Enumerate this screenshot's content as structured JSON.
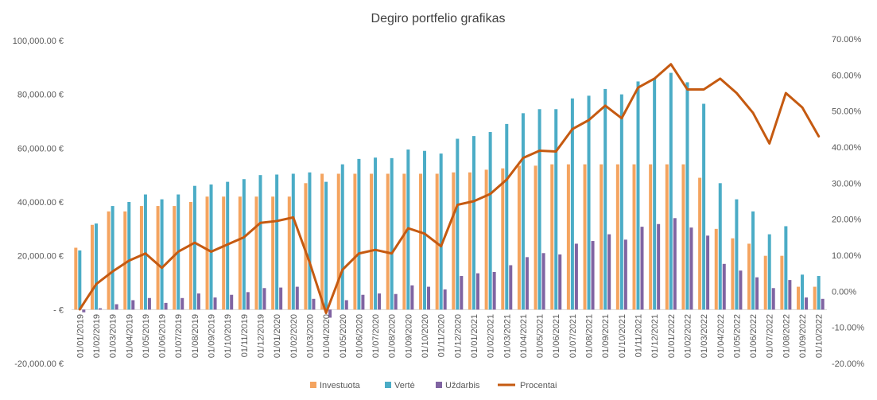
{
  "chart_data": {
    "type": "bar",
    "title": "Degiro portfelio grafikas",
    "xlabel": "",
    "ylabel": "",
    "categories": [
      "01/01/2019",
      "01/02/2019",
      "01/03/2019",
      "01/04/2019",
      "01/05/2019",
      "01/06/2019",
      "01/07/2019",
      "01/08/2019",
      "01/09/2019",
      "01/10/2019",
      "01/11/2019",
      "01/12/2019",
      "01/01/2020",
      "01/02/2020",
      "01/03/2020",
      "01/04/2020",
      "01/05/2020",
      "01/06/2020",
      "01/07/2020",
      "01/08/2020",
      "01/09/2020",
      "01/10/2020",
      "01/11/2020",
      "01/12/2020",
      "01/01/2021",
      "01/02/2021",
      "01/03/2021",
      "01/04/2021",
      "01/05/2021",
      "01/06/2021",
      "01/07/2021",
      "01/08/2021",
      "01/09/2021",
      "01/10/2021",
      "01/11/2021",
      "01/12/2021",
      "01/01/2022",
      "01/02/2022",
      "01/03/2022",
      "01/04/2022",
      "01/05/2022",
      "01/06/2022",
      "01/07/2022",
      "01/08/2022",
      "01/09/2022",
      "01/10/2022"
    ],
    "series": [
      {
        "name": "Investuota",
        "axis": "left",
        "kind": "bar",
        "color": "#f4a460",
        "values": [
          23000,
          31500,
          36500,
          36500,
          38500,
          38500,
          38500,
          40000,
          42000,
          42000,
          42000,
          42000,
          42000,
          42000,
          47000,
          50500,
          50500,
          50500,
          50500,
          50500,
          50500,
          50500,
          50500,
          51000,
          51000,
          52000,
          52500,
          53500,
          53500,
          54000,
          54000,
          54000,
          54000,
          54000,
          54000,
          54000,
          54000,
          54000,
          49000,
          30000,
          26500,
          24500,
          20000,
          20000,
          8500,
          8500
        ]
      },
      {
        "name": "Vertė",
        "axis": "left",
        "kind": "bar",
        "color": "#4bacc6",
        "values": [
          22000,
          32000,
          38500,
          40000,
          42800,
          41000,
          42800,
          46000,
          46500,
          47500,
          48500,
          50000,
          50200,
          50500,
          51000,
          47500,
          54000,
          56000,
          56500,
          56300,
          59500,
          59000,
          58000,
          63500,
          64500,
          66000,
          69000,
          73000,
          74500,
          74500,
          78500,
          79500,
          82000,
          80000,
          84800,
          85800,
          88000,
          84500,
          76500,
          47000,
          41000,
          36500,
          28000,
          31000,
          13000,
          12500
        ]
      },
      {
        "name": "Uždarbis",
        "axis": "left",
        "kind": "bar",
        "color": "#8064a2",
        "values": [
          -1000,
          500,
          2000,
          3500,
          4300,
          2500,
          4300,
          6000,
          4500,
          5500,
          6500,
          8000,
          8200,
          8500,
          4000,
          -3000,
          3500,
          5500,
          6000,
          5800,
          9000,
          8500,
          7500,
          12500,
          13500,
          14000,
          16500,
          19500,
          21000,
          20500,
          24500,
          25500,
          28000,
          26000,
          30800,
          31800,
          34000,
          30500,
          27500,
          17000,
          14500,
          12000,
          8000,
          11000,
          4500,
          4000
        ]
      },
      {
        "name": "Procentai",
        "axis": "right",
        "kind": "line",
        "color": "#c55a11",
        "values": [
          -5,
          2,
          5.5,
          8.5,
          10.5,
          6.5,
          11,
          13.5,
          11,
          13,
          15,
          19,
          19.5,
          20.5,
          8,
          -6,
          6,
          10.5,
          11.5,
          10.5,
          17.5,
          16,
          12.5,
          24,
          25,
          27,
          31,
          37,
          39,
          38.8,
          45,
          47.5,
          51.5,
          48,
          56.5,
          59,
          63,
          56,
          56,
          59,
          55,
          49.5,
          41,
          55,
          51,
          43
        ]
      }
    ],
    "left_axis": {
      "min": -20000,
      "max": 100000,
      "step": 20000,
      "tick_labels": [
        "-20,000.00 €",
        "-  €",
        "20,000.00 €",
        "40,000.00 €",
        "60,000.00 €",
        "80,000.00 €",
        "100,000.00 €"
      ]
    },
    "right_axis": {
      "min": -20,
      "max": 70,
      "step": 10,
      "tick_labels": [
        "-20.00%",
        "-10.00%",
        "0.00%",
        "10.00%",
        "20.00%",
        "30.00%",
        "40.00%",
        "50.00%",
        "60.00%",
        "70.00%"
      ]
    },
    "legend_position": "bottom",
    "grid": false
  }
}
